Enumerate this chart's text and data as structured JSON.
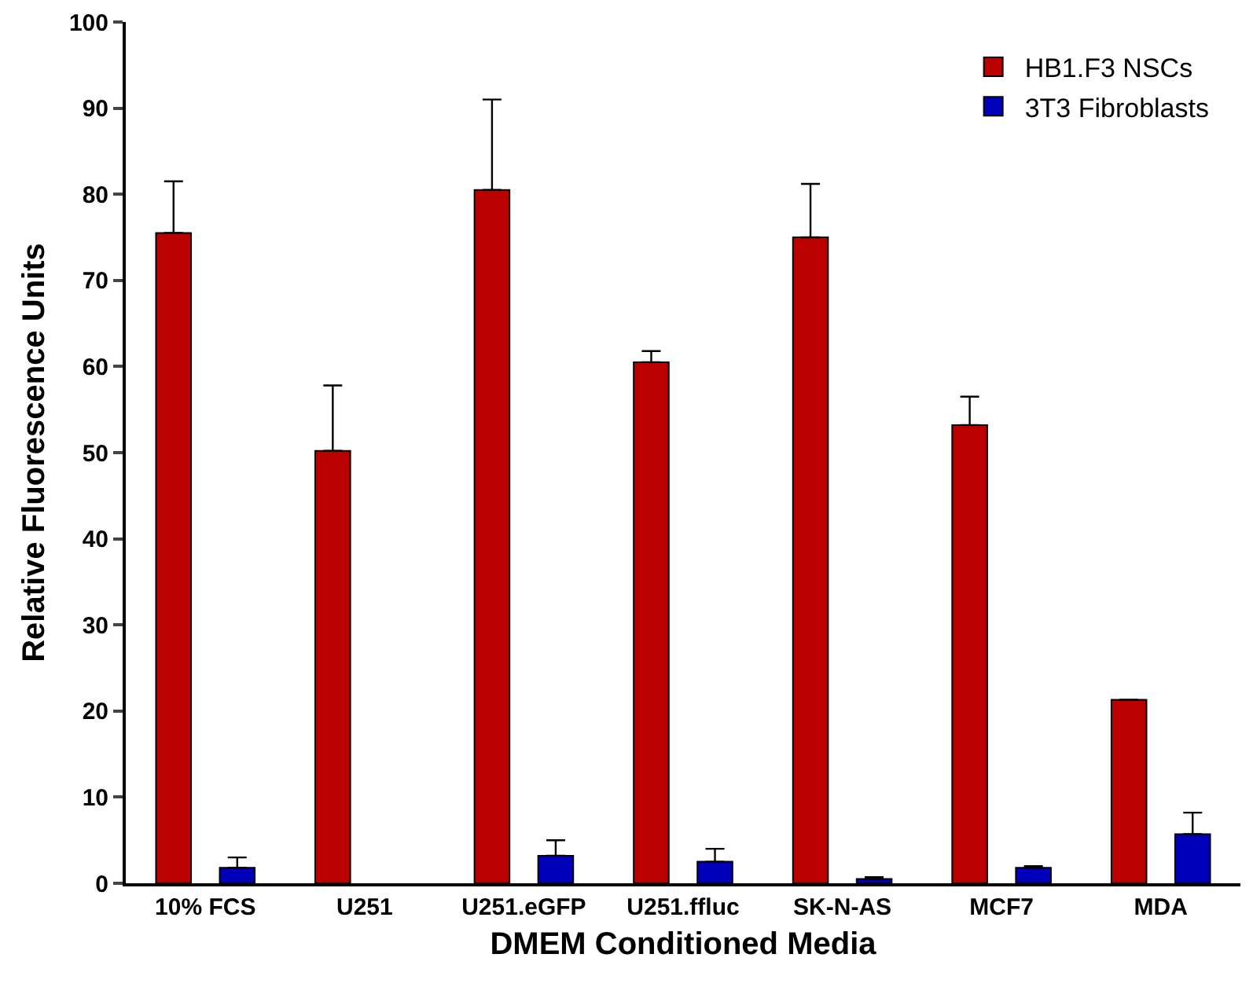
{
  "chart_data": {
    "type": "bar",
    "xlabel": "DMEM Conditioned Media",
    "ylabel": "Relative Fluorescence Units",
    "categories": [
      "10% FCS",
      "U251",
      "U251.eGFP",
      "U251.ffluc",
      "SK-N-AS",
      "MCF7",
      "MDA"
    ],
    "series": [
      {
        "name": "HB1.F3 NSCs",
        "color": "#bb0000",
        "values": [
          75.5,
          50.2,
          80.5,
          60.5,
          75,
          53.2,
          21.3
        ],
        "errors": [
          [
            75.5,
            81.5
          ],
          [
            50.2,
            57.8
          ],
          [
            80.5,
            91
          ],
          [
            60.5,
            61.8
          ],
          [
            75,
            81.2
          ],
          [
            53.2,
            56.5
          ],
          null
        ]
      },
      {
        "name": "3T3 Fibroblasts",
        "color": "#0000bb",
        "values": [
          1.8,
          null,
          3.2,
          2.5,
          0.5,
          1.8,
          5.7
        ],
        "errors": [
          [
            1.8,
            3
          ],
          null,
          [
            3.2,
            5
          ],
          [
            2.5,
            4
          ],
          [
            0.5,
            0.7
          ],
          [
            1.8,
            2
          ],
          [
            5.7,
            8.2
          ]
        ]
      }
    ],
    "ylim": [
      0,
      100
    ],
    "yticks": [
      0,
      10,
      20,
      30,
      40,
      50,
      60,
      70,
      80,
      90,
      100
    ],
    "grid": false,
    "legend": "top right"
  }
}
